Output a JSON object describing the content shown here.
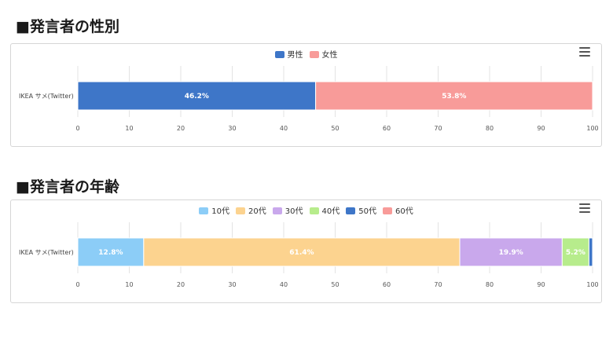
{
  "sections": [
    {
      "title": "■発言者の性別",
      "chart_data": {
        "type": "bar",
        "orientation": "horizontal",
        "stacked": true,
        "categories": [
          "IKEA サメ(Twitter)"
        ],
        "series": [
          {
            "name": "男性",
            "values": [
              46.2
            ],
            "color": "#3e76c8",
            "label": "46.2%"
          },
          {
            "name": "女性",
            "values": [
              53.8
            ],
            "color": "#f89b99",
            "label": "53.8%"
          }
        ],
        "xlim": [
          0,
          100
        ],
        "xticks": [
          "0",
          "10",
          "20",
          "30",
          "40",
          "50",
          "60",
          "70",
          "80",
          "90",
          "100"
        ],
        "grid": true,
        "legend": "top-center"
      }
    },
    {
      "title": "■発言者の年齢",
      "chart_data": {
        "type": "bar",
        "orientation": "horizontal",
        "stacked": true,
        "categories": [
          "IKEA サメ(Twitter)"
        ],
        "series": [
          {
            "name": "10代",
            "values": [
              12.8
            ],
            "color": "#8ccdf7",
            "label": "12.8%"
          },
          {
            "name": "20代",
            "values": [
              61.4
            ],
            "color": "#fcd38f",
            "label": "61.4%"
          },
          {
            "name": "30代",
            "values": [
              19.9
            ],
            "color": "#c9a8ec",
            "label": "19.9%"
          },
          {
            "name": "40代",
            "values": [
              5.2
            ],
            "color": "#b7ec8c",
            "label": "5.2%"
          },
          {
            "name": "50代",
            "values": [
              0.7
            ],
            "color": "#3e76c8",
            "label": ""
          },
          {
            "name": "60代",
            "values": [
              0.0
            ],
            "color": "#f89b99",
            "label": ""
          }
        ],
        "xlim": [
          0,
          100
        ],
        "xticks": [
          "0",
          "10",
          "20",
          "30",
          "40",
          "50",
          "60",
          "70",
          "80",
          "90",
          "100"
        ],
        "grid": true,
        "legend": "top-center"
      }
    }
  ]
}
